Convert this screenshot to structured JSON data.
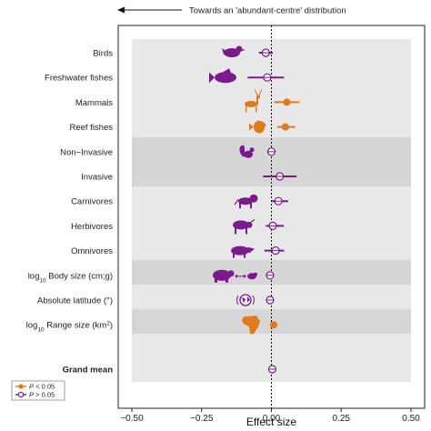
{
  "chart_data": {
    "type": "forest-plot",
    "direction_note": "Towards an 'abundant-centre' distribution",
    "xlabel": "Effect size",
    "xlim": [
      -0.5,
      0.5
    ],
    "xticks": [
      "−0.50",
      "−0.25",
      "0.00",
      "0.25",
      "0.50"
    ],
    "xtick_values": [
      -0.5,
      -0.25,
      0,
      0.25,
      0.5
    ],
    "reference_line": 0,
    "colors": {
      "significant": "#E07B1A",
      "non_significant": "#7B1A8C"
    },
    "legend": [
      {
        "label": "P < 0.05",
        "color": "#E07B1A"
      },
      {
        "label": "P > 0.05",
        "color": "#7B1A8C"
      }
    ],
    "rows": [
      {
        "label": "Birds",
        "estimate": -0.02,
        "low": -0.045,
        "high": 0.005,
        "significant": false,
        "icon": "bird-icon"
      },
      {
        "label": "Freshwater fishes",
        "estimate": -0.015,
        "low": -0.085,
        "high": 0.045,
        "significant": false,
        "icon": "fish-icon"
      },
      {
        "label": "Mammals",
        "estimate": 0.055,
        "low": 0.01,
        "high": 0.1,
        "significant": true,
        "icon": "deer-icon"
      },
      {
        "label": "Reef fishes",
        "estimate": 0.05,
        "low": 0.02,
        "high": 0.085,
        "significant": true,
        "icon": "reef-fish-icon"
      },
      {
        "label": "Non−Invasive",
        "estimate": 0.0,
        "low": -0.015,
        "high": 0.015,
        "significant": false,
        "icon": "squirrel-icon"
      },
      {
        "label": "Invasive",
        "estimate": 0.03,
        "low": -0.03,
        "high": 0.09,
        "significant": false,
        "icon": ""
      },
      {
        "label": "Carnivores",
        "estimate": 0.025,
        "low": 0.0,
        "high": 0.06,
        "significant": false,
        "icon": "lion-icon"
      },
      {
        "label": "Herbivores",
        "estimate": 0.005,
        "low": -0.02,
        "high": 0.045,
        "significant": false,
        "icon": "buffalo-icon"
      },
      {
        "label": "Omnivores",
        "estimate": 0.015,
        "low": -0.025,
        "high": 0.045,
        "significant": false,
        "icon": "boar-icon"
      },
      {
        "label": "log10 Body size (cm;g)",
        "label_parts": [
          "log",
          "10",
          " Body size (cm;g)"
        ],
        "estimate": -0.005,
        "low": -0.012,
        "high": 0.002,
        "significant": false,
        "icon": "bear-icon"
      },
      {
        "label": "Absolute latitude (°)",
        "estimate": -0.005,
        "low": -0.012,
        "high": 0.002,
        "significant": false,
        "icon": "globe-icon"
      },
      {
        "label": "log10 Range size (km2)",
        "label_parts": [
          "log",
          "10",
          " Range size (km",
          "2",
          ")"
        ],
        "estimate": 0.008,
        "low": 0.002,
        "high": 0.015,
        "significant": true,
        "icon": "africa-icon"
      },
      {
        "label": "Grand mean",
        "estimate": 0.003,
        "low": -0.004,
        "high": 0.01,
        "significant": false,
        "icon": "",
        "bold": true
      }
    ]
  }
}
